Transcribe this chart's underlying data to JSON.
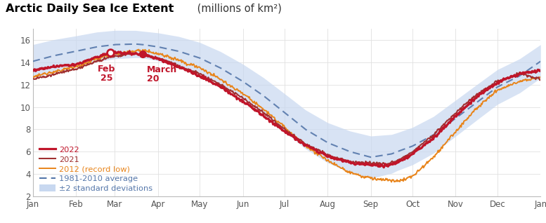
{
  "title_bold": "Arctic Daily Sea Ice Extent",
  "title_normal": " (millions of km²)",
  "ylim": [
    2,
    17
  ],
  "yticks": [
    2,
    4,
    6,
    8,
    10,
    12,
    14,
    16
  ],
  "months": [
    "Jan",
    "Feb",
    "Mar",
    "Apr",
    "May",
    "Jun",
    "Jul",
    "Aug",
    "Sep",
    "Oct",
    "Nov",
    "Dec",
    "Jan"
  ],
  "month_days": [
    0,
    31,
    59,
    90,
    120,
    151,
    181,
    212,
    243,
    273,
    304,
    334,
    365
  ],
  "color_2022": "#c0152a",
  "color_2021": "#a03030",
  "color_2012": "#e8841a",
  "color_avg": "#5577aa",
  "color_shade": "#c8d8f0",
  "avg_days": [
    0,
    15,
    31,
    46,
    59,
    74,
    79,
    90,
    105,
    120,
    135,
    151,
    166,
    181,
    196,
    212,
    228,
    243,
    258,
    262,
    273,
    288,
    304,
    320,
    334,
    350,
    365
  ],
  "avg_vals": [
    14.1,
    14.6,
    15.0,
    15.4,
    15.6,
    15.65,
    15.6,
    15.4,
    15.0,
    14.4,
    13.5,
    12.3,
    11.0,
    9.5,
    8.0,
    6.8,
    6.0,
    5.5,
    5.8,
    6.0,
    6.5,
    7.5,
    9.0,
    10.5,
    11.8,
    12.8,
    14.1
  ],
  "std_days": [
    0,
    79,
    182,
    243,
    262,
    365
  ],
  "std_vals": [
    0.75,
    0.6,
    0.85,
    0.95,
    0.85,
    0.75
  ],
  "y2022_days": [
    0,
    10,
    20,
    31,
    46,
    56,
    66,
    79,
    90,
    105,
    120,
    135,
    151,
    166,
    181,
    196,
    212,
    228,
    243,
    255,
    262,
    273,
    288,
    304,
    320,
    334,
    350,
    365
  ],
  "y2022_vals": [
    13.3,
    13.5,
    13.7,
    13.8,
    14.5,
    14.9,
    14.85,
    14.75,
    14.3,
    13.6,
    12.8,
    11.8,
    10.5,
    9.2,
    7.8,
    6.6,
    5.6,
    5.0,
    4.8,
    4.75,
    5.0,
    5.8,
    7.2,
    9.2,
    11.0,
    12.2,
    13.0,
    13.3
  ],
  "y2021_days": [
    0,
    10,
    20,
    31,
    46,
    56,
    70,
    79,
    90,
    105,
    120,
    135,
    151,
    166,
    181,
    196,
    212,
    228,
    243,
    255,
    262,
    273,
    288,
    304,
    320,
    334,
    350,
    365
  ],
  "y2021_vals": [
    12.5,
    12.8,
    13.1,
    13.4,
    14.1,
    14.5,
    14.8,
    14.75,
    14.4,
    13.7,
    13.0,
    12.0,
    10.8,
    9.5,
    8.0,
    6.7,
    5.7,
    5.1,
    5.0,
    4.9,
    5.2,
    6.0,
    7.5,
    9.5,
    11.2,
    12.3,
    13.0,
    12.5
  ],
  "y2012_days": [
    0,
    10,
    20,
    31,
    46,
    56,
    66,
    79,
    90,
    105,
    120,
    135,
    151,
    166,
    181,
    196,
    212,
    228,
    243,
    255,
    262,
    265,
    273,
    288,
    304,
    320,
    334,
    350,
    365
  ],
  "y2012_vals": [
    12.7,
    13.0,
    13.3,
    13.6,
    14.3,
    14.7,
    14.9,
    15.1,
    14.8,
    14.2,
    13.5,
    12.5,
    11.2,
    9.8,
    8.2,
    6.5,
    5.2,
    4.1,
    3.6,
    3.45,
    3.4,
    3.45,
    3.8,
    5.5,
    7.8,
    10.0,
    11.5,
    12.3,
    12.7
  ],
  "day_feb25": 56,
  "val_feb25": 14.9,
  "day_mar20": 79,
  "val_mar20": 14.75,
  "annotation_feb_line1": "Feb",
  "annotation_feb_line2": "25",
  "annotation_mar_line1": "March",
  "annotation_mar_line2": "20",
  "legend_2022": "2022",
  "legend_2021": "2021",
  "legend_2012": "2012 (record low)",
  "legend_avg": "1981-2010 average",
  "legend_shade": "±2 standard deviations"
}
